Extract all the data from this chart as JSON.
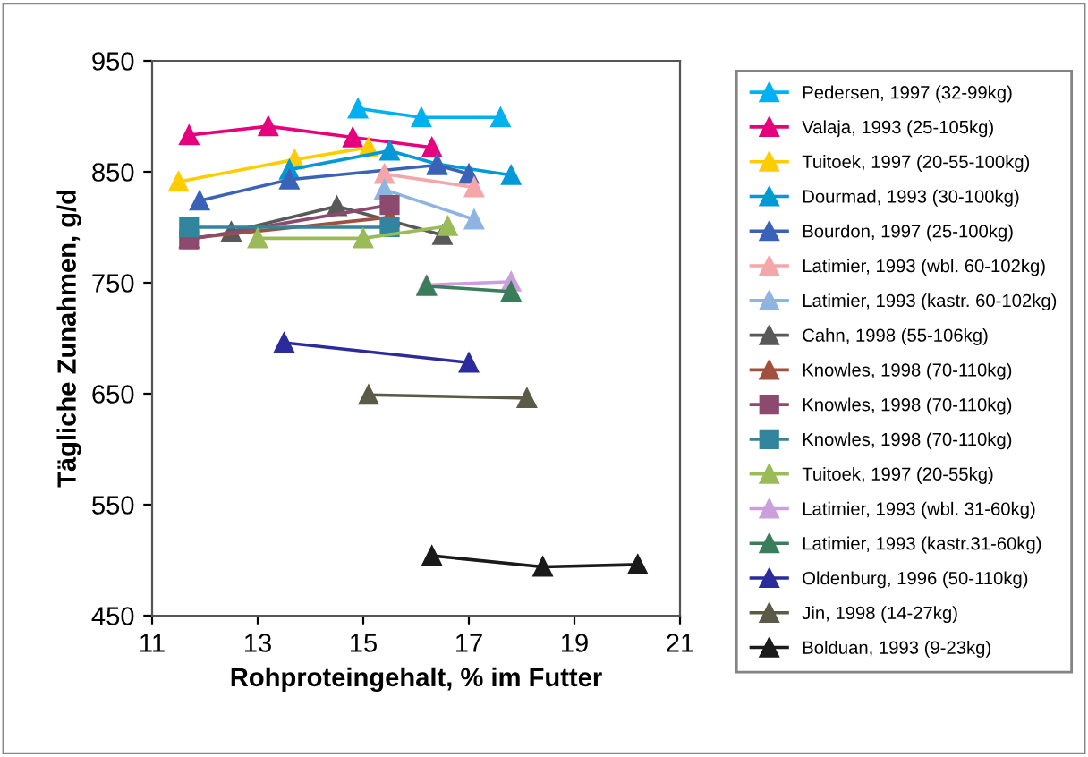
{
  "chart_data": {
    "type": "line",
    "xlabel": "Rohproteingehalt, % im Futter",
    "ylabel": "Tägliche Zunahmen, g/d",
    "xlim": [
      11,
      21
    ],
    "xticks": [
      11,
      13,
      15,
      17,
      19,
      21
    ],
    "ylim": [
      450,
      950
    ],
    "yticks": [
      450,
      550,
      650,
      750,
      850,
      950
    ],
    "grid": false,
    "legend": "right",
    "marker": "triangle",
    "series": [
      {
        "name": "Pedersen, 1997 (32-99kg)",
        "color": "#00b0f0",
        "x": [
          14.9,
          16.1,
          17.6
        ],
        "values": [
          907,
          899,
          899
        ]
      },
      {
        "name": "Valaja, 1993 (25-105kg)",
        "color": "#e6007e",
        "x": [
          11.7,
          13.2,
          14.8,
          16.3
        ],
        "values": [
          883,
          891,
          881,
          872
        ]
      },
      {
        "name": "Tuitoek, 1997 (20-55-100kg)",
        "color": "#ffcc00",
        "x": [
          11.5,
          13.7,
          15.1
        ],
        "values": [
          841,
          861,
          872
        ]
      },
      {
        "name": "Dourmad, 1993 (30-100kg)",
        "color": "#0099d8",
        "x": [
          13.6,
          15.5,
          16.4,
          17.8
        ],
        "values": [
          852,
          869,
          857,
          847
        ]
      },
      {
        "name": "Bourdon, 1997 (25-100kg)",
        "color": "#3a63b8",
        "x": [
          11.9,
          13.6,
          16.4,
          17.0
        ],
        "values": [
          824,
          843,
          856,
          848
        ]
      },
      {
        "name": "Latimier, 1993 (wbl. 60-102kg)",
        "color": "#f4a6a8",
        "x": [
          15.4,
          17.1
        ],
        "values": [
          848,
          836
        ]
      },
      {
        "name": "Latimier, 1993 (kastr. 60-102kg)",
        "color": "#8eb4e3",
        "x": [
          15.4,
          17.1
        ],
        "values": [
          834,
          807
        ]
      },
      {
        "name": "Cahn, 1998 (55-106kg)",
        "color": "#595959",
        "x": [
          12.5,
          14.5,
          16.5
        ],
        "values": [
          796,
          819,
          793
        ]
      },
      {
        "name": "Knowles, 1998 (70-110kg)",
        "color": "#a0503c",
        "x": [
          11.7,
          15.5
        ],
        "values": [
          790,
          809
        ]
      },
      {
        "name": "Knowles, 1998 (70-110kg)",
        "color": "#8c4a6e",
        "marker": "square",
        "x": [
          11.7,
          15.5
        ],
        "values": [
          789,
          820
        ]
      },
      {
        "name": "Knowles, 1998 (70-110kg)",
        "color": "#31859c",
        "marker": "square",
        "x": [
          11.7,
          15.5
        ],
        "values": [
          800,
          800
        ]
      },
      {
        "name": "Tuitoek, 1997 (20-55kg)",
        "color": "#9bbb59",
        "x": [
          13.0,
          15.0,
          16.6
        ],
        "values": [
          790,
          790,
          801
        ]
      },
      {
        "name": "Latimier, 1993 (wbl. 31-60kg)",
        "color": "#c9a0dc",
        "x": [
          16.2,
          17.8
        ],
        "values": [
          748,
          751
        ]
      },
      {
        "name": "Latimier, 1993 (kastr.31-60kg)",
        "color": "#3a7d5a",
        "x": [
          16.2,
          17.8
        ],
        "values": [
          747,
          742
        ]
      },
      {
        "name": "Oldenburg, 1996 (50-110kg)",
        "color": "#2b2b9b",
        "x": [
          13.5,
          17.0
        ],
        "values": [
          696,
          678
        ]
      },
      {
        "name": "Jin, 1998 (14-27kg)",
        "color": "#5a5a46",
        "x": [
          15.1,
          18.1
        ],
        "values": [
          649,
          646
        ]
      },
      {
        "name": "Bolduan, 1993 (9-23kg)",
        "color": "#1a1a1a",
        "x": [
          16.3,
          18.4,
          20.2
        ],
        "values": [
          504,
          494,
          496
        ]
      }
    ]
  }
}
